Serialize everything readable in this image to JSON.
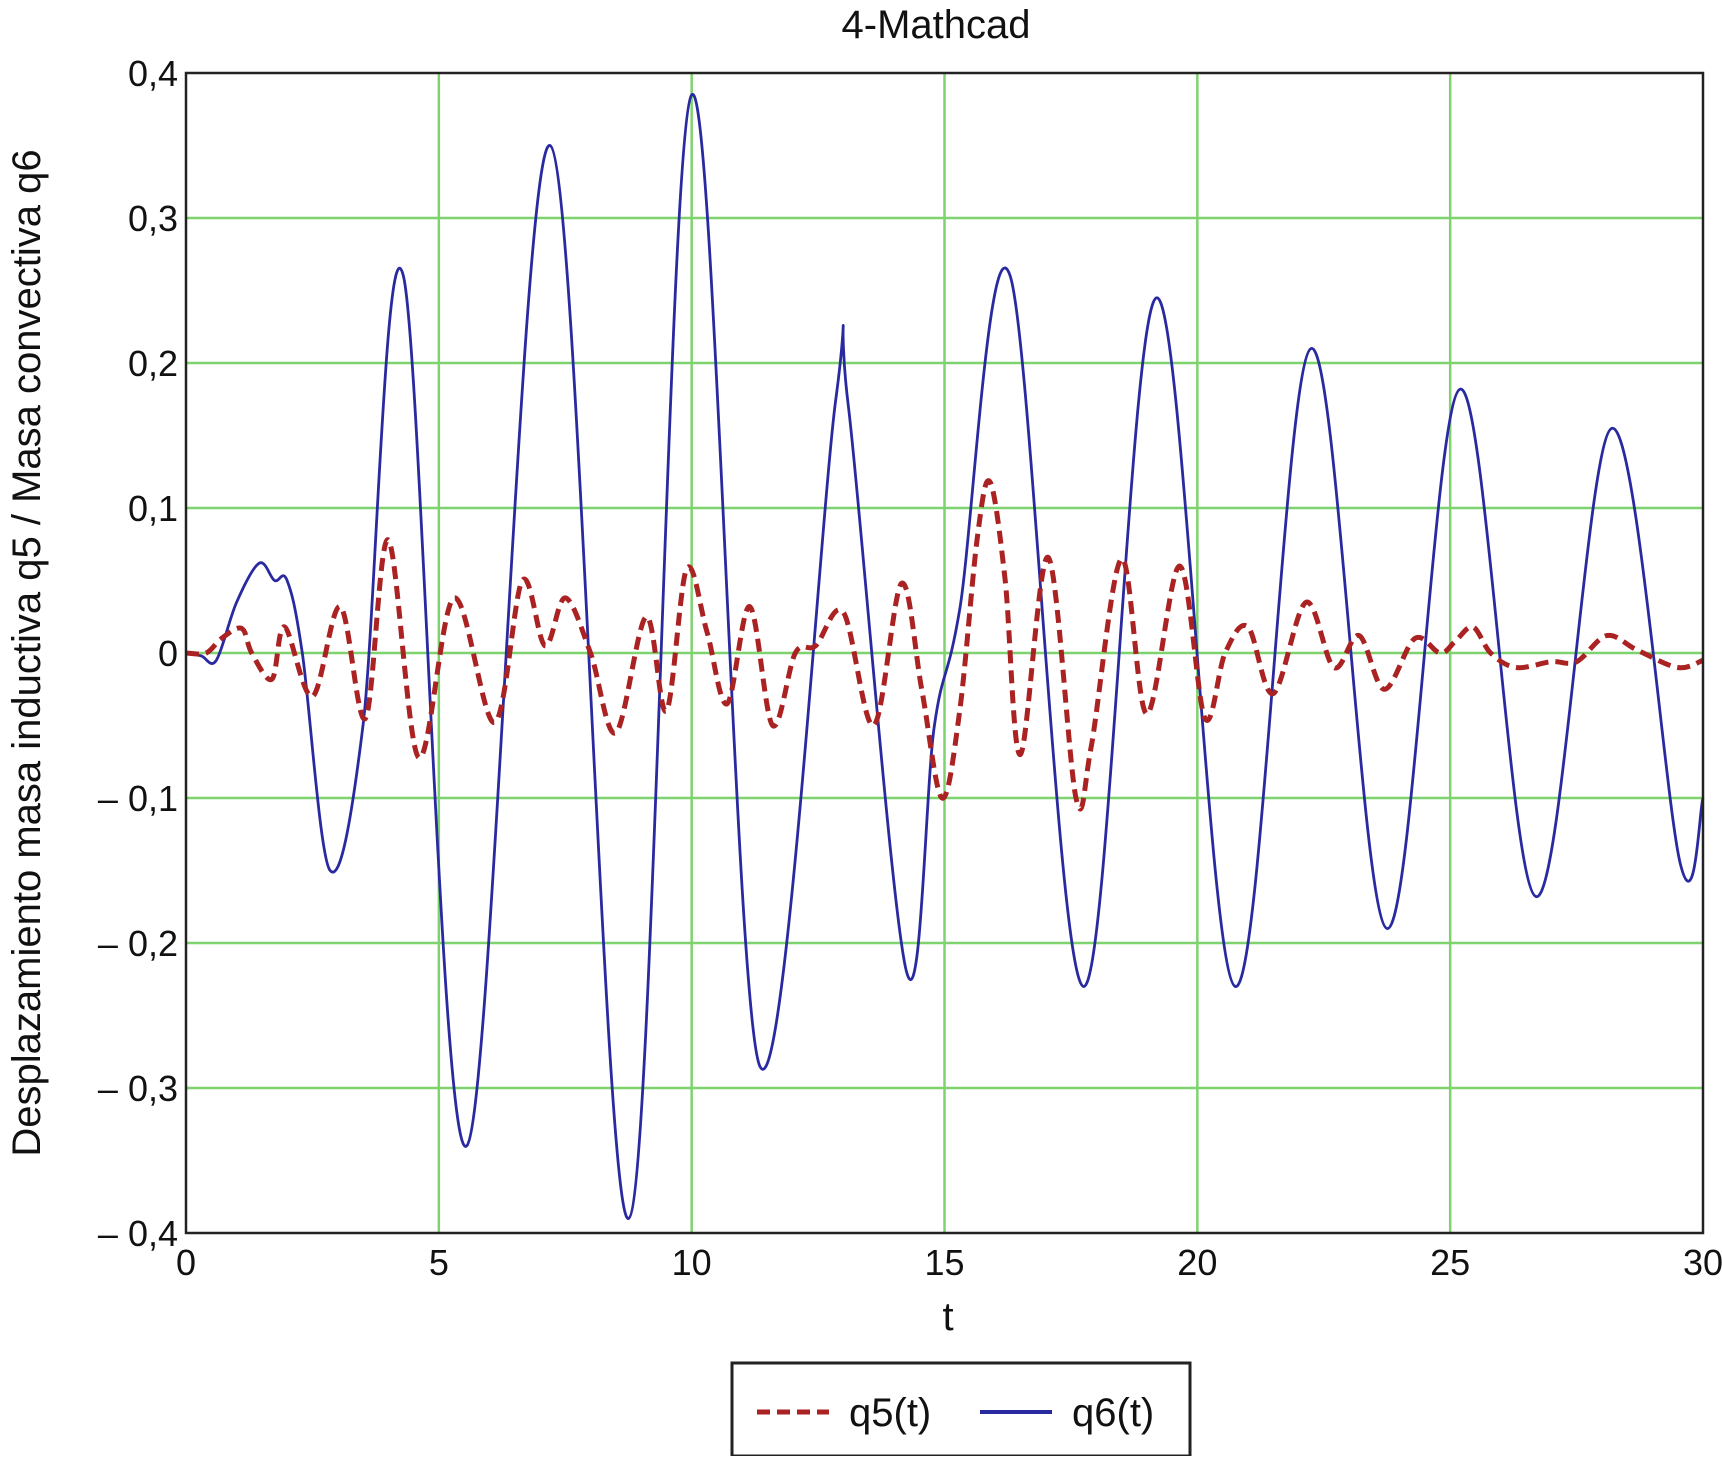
{
  "chart_data": {
    "type": "line",
    "title": "4-Mathcad",
    "xlabel": "t",
    "ylabel": "Desplazamiento masa inductiva q5 / Masa convectiva q6",
    "xlim": [
      0,
      30
    ],
    "ylim": [
      -0.4,
      0.4
    ],
    "x_ticks": [
      0,
      5,
      10,
      15,
      20,
      25,
      30
    ],
    "x_tick_labels": [
      "0",
      "5",
      "10",
      "15",
      "20",
      "25",
      "30"
    ],
    "y_ticks": [
      0.4,
      0.3,
      0.2,
      0.1,
      0,
      -0.1,
      -0.2,
      -0.3,
      -0.4
    ],
    "y_tick_labels": [
      "0,4",
      "0,3",
      "0,2",
      "0,1",
      "0",
      "– 0,1",
      "– 0,2",
      "– 0,3",
      "– 0,4"
    ],
    "grid": true,
    "grid_color": "#7fd36f",
    "legend_position": "bottom-center",
    "series": [
      {
        "name": "q5(t)",
        "color": "#aa2222",
        "style": "dashed",
        "x": [
          0,
          0.4,
          0.7,
          1.1,
          1.3,
          1.7,
          1.95,
          2.5,
          3.05,
          3.55,
          4.0,
          4.6,
          5.3,
          6.1,
          6.65,
          7.1,
          7.5,
          8.0,
          8.5,
          9.1,
          9.5,
          9.9,
          10.3,
          10.7,
          11.15,
          11.6,
          12.05,
          12.45,
          13.0,
          13.6,
          14.15,
          14.55,
          14.95,
          15.3,
          15.65,
          15.9,
          16.2,
          16.5,
          17.05,
          17.6,
          17.9,
          18.5,
          19.0,
          19.65,
          20.15,
          20.55,
          21.0,
          21.5,
          22.15,
          22.7,
          23.2,
          23.7,
          24.3,
          24.8,
          25.1,
          25.45,
          25.8,
          26.3,
          27.0,
          27.5,
          28.1,
          28.7,
          29.5,
          30.0
        ],
        "values": [
          0.0,
          0.0,
          0.01,
          0.017,
          0.0,
          -0.018,
          0.018,
          -0.03,
          0.032,
          -0.045,
          0.078,
          -0.072,
          0.038,
          -0.048,
          0.05,
          0.005,
          0.038,
          0.0,
          -0.055,
          0.025,
          -0.04,
          0.058,
          0.015,
          -0.035,
          0.032,
          -0.05,
          0.0,
          0.005,
          0.028,
          -0.05,
          0.048,
          -0.025,
          -0.1,
          -0.04,
          0.08,
          0.118,
          0.05,
          -0.07,
          0.066,
          -0.1,
          -0.065,
          0.065,
          -0.042,
          0.06,
          -0.045,
          0.0,
          0.018,
          -0.028,
          0.035,
          -0.01,
          0.012,
          -0.025,
          0.01,
          0.0,
          0.008,
          0.018,
          0.0,
          -0.01,
          -0.006,
          -0.006,
          0.012,
          0.002,
          -0.01,
          -0.005
        ]
      },
      {
        "name": "q6(t)",
        "color": "#2a2aa0",
        "style": "solid",
        "x": [
          0,
          0.3,
          0.6,
          1.0,
          1.45,
          1.75,
          2.0,
          2.3,
          2.85,
          3.5,
          4.3,
          5.55,
          7.2,
          8.75,
          10.0,
          11.35,
          12.85,
          13.1,
          14.25,
          14.8,
          15.3,
          16.3,
          17.75,
          19.2,
          20.75,
          22.25,
          23.75,
          25.2,
          26.7,
          28.2,
          29.55,
          30.0
        ],
        "values": [
          0.0,
          -0.002,
          -0.005,
          0.035,
          0.062,
          0.05,
          0.05,
          0.0,
          -0.15,
          -0.05,
          0.26,
          -0.34,
          0.35,
          -0.39,
          0.385,
          -0.285,
          0.175,
          0.17,
          -0.22,
          -0.05,
          0.03,
          0.26,
          -0.23,
          0.245,
          -0.23,
          0.21,
          -0.19,
          0.182,
          -0.168,
          0.155,
          -0.145,
          -0.1
        ]
      }
    ]
  }
}
